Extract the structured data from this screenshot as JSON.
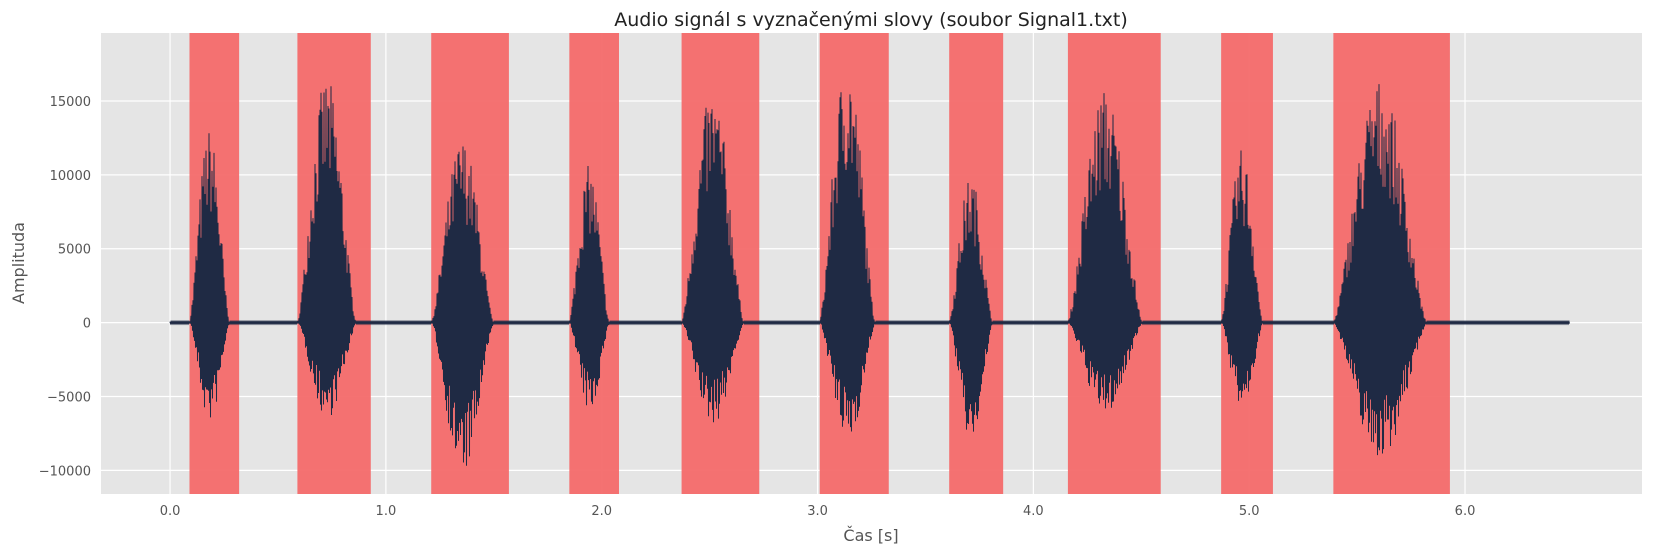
{
  "chart_data": {
    "type": "line",
    "title": "Audio signál s vyznačenými slovy (soubor Signal1.txt)",
    "xlabel": "Čas [s]",
    "ylabel": "Amplituda",
    "xlim": [
      -0.32,
      6.82
    ],
    "ylim": [
      -11600,
      19600
    ],
    "x_ticks": [
      0.0,
      1.0,
      2.0,
      3.0,
      4.0,
      5.0,
      6.0
    ],
    "x_tick_labels": [
      "0.0",
      "1.0",
      "2.0",
      "3.0",
      "4.0",
      "5.0",
      "6.0"
    ],
    "y_ticks": [
      -10000,
      -5000,
      0,
      5000,
      10000,
      15000
    ],
    "y_tick_labels": [
      "−10000",
      "−5000",
      "0",
      "5000",
      "10000",
      "15000"
    ],
    "grid": true,
    "colors": {
      "background": "#e5e5e5",
      "grid": "#ffffff",
      "signal": "#1f2a44",
      "region": "#f46a6a"
    },
    "signal": {
      "name": "",
      "x_start": 0.0,
      "x_end": 6.48
    },
    "word_regions": [
      {
        "start": 0.09,
        "end": 0.32,
        "peak_pos": 13200,
        "peak_neg": -6800
      },
      {
        "start": 0.59,
        "end": 0.93,
        "peak_pos": 16700,
        "peak_neg": -6500
      },
      {
        "start": 1.21,
        "end": 1.57,
        "peak_pos": 12500,
        "peak_neg": -10300
      },
      {
        "start": 1.85,
        "end": 2.08,
        "peak_pos": 10700,
        "peak_neg": -6100
      },
      {
        "start": 2.37,
        "end": 2.73,
        "peak_pos": 15800,
        "peak_neg": -6900
      },
      {
        "start": 3.01,
        "end": 3.33,
        "peak_pos": 18000,
        "peak_neg": -8100
      },
      {
        "start": 3.61,
        "end": 3.86,
        "peak_pos": 10000,
        "peak_neg": -8200
      },
      {
        "start": 4.16,
        "end": 4.59,
        "peak_pos": 15900,
        "peak_neg": -6200
      },
      {
        "start": 4.87,
        "end": 5.11,
        "peak_pos": 11800,
        "peak_neg": -6000
      },
      {
        "start": 5.39,
        "end": 5.93,
        "peak_pos": 16500,
        "peak_neg": -9200
      }
    ]
  }
}
